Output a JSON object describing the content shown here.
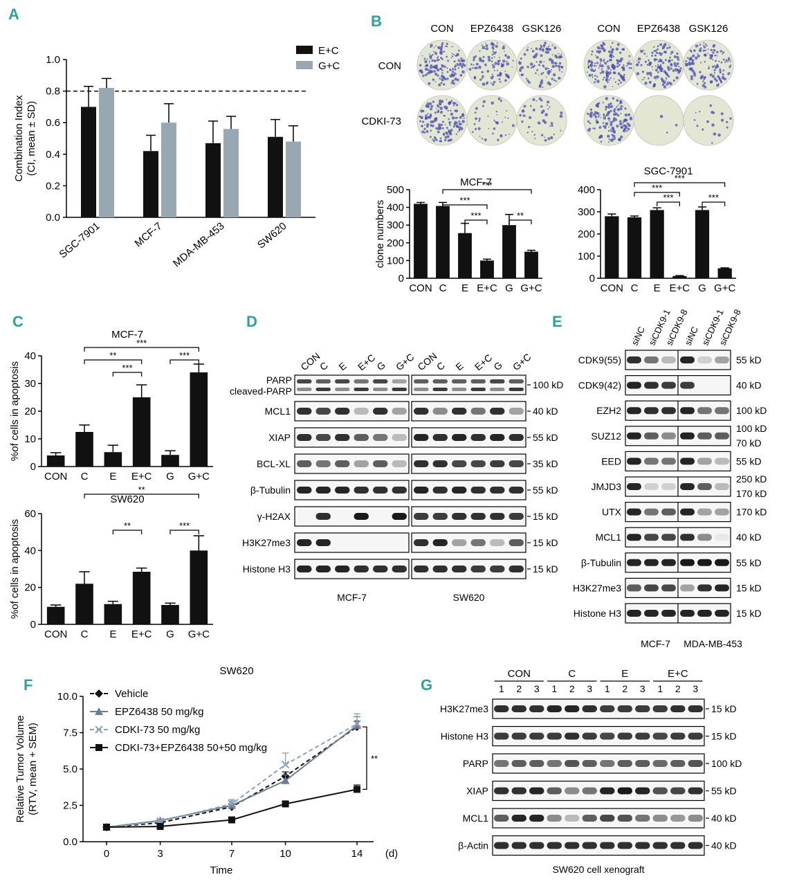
{
  "panels": {
    "A": "A",
    "B": "B",
    "C": "C",
    "D": "D",
    "E": "E",
    "F": "F",
    "G": "G"
  },
  "colors": {
    "accent": "#2aa39a",
    "black": "#111111",
    "grey_bar": "#98a8b3",
    "f_blue": "#6a7d92",
    "f_lightblue": "#8aa0b8"
  },
  "chart_data": [
    {
      "id": "A",
      "type": "bar",
      "title": "",
      "ylabel_line1": "Combination Index",
      "ylabel_line2": "(CI, mean ± SD)",
      "categories": [
        "SGC-7901",
        "MCF-7",
        "MDA-MB-453",
        "SW620"
      ],
      "series": [
        {
          "name": "E+C",
          "values": [
            0.7,
            0.42,
            0.47,
            0.51
          ],
          "errors": [
            0.13,
            0.1,
            0.14,
            0.11
          ]
        },
        {
          "name": "G+C",
          "values": [
            0.82,
            0.6,
            0.56,
            0.48
          ],
          "errors": [
            0.06,
            0.12,
            0.08,
            0.1
          ]
        }
      ],
      "reference_line": 0.8,
      "ylim": [
        0,
        1.0
      ],
      "yticks": [
        "0.0",
        "0.2",
        "0.4",
        "0.6",
        "0.8",
        "1.0"
      ]
    },
    {
      "id": "B1",
      "type": "bar",
      "title": "MCF-7",
      "ylabel": "clone numbers",
      "categories": [
        "CON",
        "C",
        "E",
        "E+C",
        "G",
        "G+C"
      ],
      "values": [
        420,
        408,
        255,
        100,
        300,
        150
      ],
      "errors": [
        8,
        20,
        55,
        8,
        60,
        8
      ],
      "ylim": [
        0,
        500
      ],
      "yticks": [
        "0",
        "100",
        "200",
        "300",
        "400",
        "500"
      ],
      "significance": [
        {
          "from": 1,
          "to": 3,
          "label": "***",
          "level": 1
        },
        {
          "from": 1,
          "to": 5,
          "label": "***",
          "level": 2
        },
        {
          "from": 2,
          "to": 3,
          "label": "***",
          "level": 0
        },
        {
          "from": 4,
          "to": 5,
          "label": "**",
          "level": 0
        }
      ]
    },
    {
      "id": "B2",
      "type": "bar",
      "title": "SGC-7901",
      "ylabel": "",
      "categories": [
        "CON",
        "C",
        "E",
        "E+C",
        "G",
        "G+C"
      ],
      "values": [
        280,
        275,
        308,
        10,
        308,
        45
      ],
      "errors": [
        10,
        6,
        10,
        2,
        14,
        2
      ],
      "ylim": [
        0,
        400
      ],
      "yticks": [
        "0",
        "100",
        "200",
        "300",
        "400"
      ],
      "significance": [
        {
          "from": 1,
          "to": 3,
          "label": "***",
          "level": 1
        },
        {
          "from": 1,
          "to": 5,
          "label": "***",
          "level": 2
        },
        {
          "from": 2,
          "to": 3,
          "label": "***",
          "level": 0
        },
        {
          "from": 4,
          "to": 5,
          "label": "***",
          "level": 0
        }
      ]
    },
    {
      "id": "C1",
      "type": "bar",
      "title": "MCF-7",
      "ylabel": "%of cells in apoptosis",
      "categories": [
        "CON",
        "C",
        "E",
        "E+C",
        "G",
        "G+C"
      ],
      "values": [
        4,
        12.5,
        5.2,
        25,
        4.2,
        34
      ],
      "errors": [
        1,
        2.5,
        2.5,
        4.5,
        1.5,
        3
      ],
      "ylim": [
        0,
        40
      ],
      "yticks": [
        "0",
        "10",
        "20",
        "30",
        "40"
      ],
      "significance": [
        {
          "from": 2,
          "to": 3,
          "label": "***",
          "level": 0
        },
        {
          "from": 1,
          "to": 3,
          "label": "**",
          "level": 1
        },
        {
          "from": 4,
          "to": 5,
          "label": "***",
          "level": 1
        },
        {
          "from": 1,
          "to": 5,
          "label": "***",
          "level": 2
        }
      ]
    },
    {
      "id": "C2",
      "type": "bar",
      "title": "SW620",
      "ylabel": "%of cells in apoptosis",
      "categories": [
        "CON",
        "C",
        "E",
        "E+C",
        "G",
        "G+C"
      ],
      "values": [
        9.5,
        22,
        11,
        28.5,
        10.5,
        40
      ],
      "errors": [
        1,
        6.5,
        1.5,
        2,
        1,
        8
      ],
      "ylim": [
        0,
        60
      ],
      "yticks": [
        "0",
        "20",
        "40",
        "60"
      ],
      "significance": [
        {
          "from": 2,
          "to": 3,
          "label": "**",
          "level": 0
        },
        {
          "from": 4,
          "to": 5,
          "label": "***",
          "level": 0
        },
        {
          "from": 1,
          "to": 5,
          "label": "**",
          "level": 2
        }
      ]
    },
    {
      "id": "F",
      "type": "line",
      "title": "SW620",
      "xlabel": "Time",
      "xunit": "(d)",
      "ylabel_line1": "Relative Tumor Volume",
      "ylabel_line2": "(RTV, mean + SEM)",
      "x": [
        0,
        3,
        7,
        10,
        14
      ],
      "xticks": [
        "0",
        "3",
        "7",
        "10",
        "14"
      ],
      "yticks": [
        "0.0",
        "2.5",
        "5.0",
        "7.5",
        "10.0"
      ],
      "ylim": [
        0,
        10
      ],
      "significance_label": "**",
      "series": [
        {
          "name": "Vehicle",
          "values": [
            1.0,
            1.3,
            2.4,
            4.5,
            7.9
          ],
          "errors": [
            0.05,
            0.1,
            0.2,
            0.3,
            0.4
          ],
          "marker": "diamond",
          "color": "#111111",
          "dash": "6,4"
        },
        {
          "name": "EPZ6438 50 mg/kg",
          "values": [
            1.0,
            1.45,
            2.5,
            4.2,
            8.0
          ],
          "errors": [
            0.05,
            0.1,
            0.3,
            0.4,
            0.6
          ],
          "marker": "triangle",
          "color": "#6a7d92",
          "dash": ""
        },
        {
          "name": "CDKI-73 50 mg/kg",
          "values": [
            1.0,
            1.4,
            2.6,
            5.3,
            8.1
          ],
          "errors": [
            0.05,
            0.1,
            0.3,
            0.8,
            0.7
          ],
          "marker": "x",
          "color": "#8aa0b8",
          "dash": "6,4"
        },
        {
          "name": "CDKI-73+EPZ6438 50+50 mg/kg",
          "values": [
            1.0,
            1.05,
            1.5,
            2.6,
            3.6
          ],
          "errors": [
            0.05,
            0.05,
            0.1,
            0.15,
            0.3
          ],
          "marker": "square",
          "color": "#111111",
          "dash": ""
        }
      ]
    }
  ],
  "panelB": {
    "cols": [
      "CON",
      "EPZ6438",
      "GSK126"
    ],
    "rows": [
      "CON",
      "CDKI-73"
    ]
  },
  "panelD": {
    "lanes": [
      "CON",
      "C",
      "E",
      "E+C",
      "G",
      "G+C",
      "CON",
      "C",
      "E",
      "E+C",
      "G",
      "G+C"
    ],
    "rows": [
      {
        "label": "PARP",
        "label2": "cleaved-PARP",
        "kd": "100 kD"
      },
      {
        "label": "MCL1",
        "kd": "40 kD"
      },
      {
        "label": "XIAP",
        "kd": "55 kD"
      },
      {
        "label": "BCL-XL",
        "kd": "35 kD"
      },
      {
        "label": "β-Tubulin",
        "kd": "55 kD"
      },
      {
        "label": "γ-H2AX",
        "kd": "15 kD"
      },
      {
        "label": "H3K27me3",
        "kd": "15 kD"
      },
      {
        "label": "Histone H3",
        "kd": "15 kD"
      }
    ],
    "groups": [
      "MCF-7",
      "SW620"
    ]
  },
  "panelE": {
    "lanes": [
      "siNC",
      "siCDK9-1",
      "siCDK9-8",
      "siNC",
      "siCDK9-1",
      "siCDK9-8"
    ],
    "rows": [
      {
        "label": "CDK9(55)",
        "kd": "55 kD"
      },
      {
        "label": "CDK9(42)",
        "kd": "40 kD"
      },
      {
        "label": "EZH2",
        "kd": "100 kD"
      },
      {
        "label": "SUZ12",
        "kd": "100 kD",
        "kd2": "70 kD"
      },
      {
        "label": "EED",
        "kd": "55 kD"
      },
      {
        "label": "JMJD3",
        "kd": "250 kD",
        "kd2": "170 kD"
      },
      {
        "label": "UTX",
        "kd": "170 kD"
      },
      {
        "label": "MCL1",
        "kd": "40 kD"
      },
      {
        "label": "β-Tubulin",
        "kd": "55 kD"
      },
      {
        "label": "H3K27me3",
        "kd": "15 kD"
      },
      {
        "label": "Histone H3",
        "kd": "15 kD"
      }
    ],
    "groups": [
      "MCF-7",
      "MDA-MB-453"
    ]
  },
  "panelG": {
    "groups": [
      "CON",
      "C",
      "E",
      "E+C"
    ],
    "lanes": [
      "1",
      "2",
      "3",
      "1",
      "2",
      "3",
      "1",
      "2",
      "3",
      "1",
      "2",
      "3"
    ],
    "rows": [
      {
        "label": "H3K27me3",
        "kd": "15 kD"
      },
      {
        "label": "Histone H3",
        "kd": "15 kD"
      },
      {
        "label": "PARP",
        "kd": "100 kD"
      },
      {
        "label": "XIAP",
        "kd": "55 kD"
      },
      {
        "label": "MCL1",
        "kd": "40 kD"
      },
      {
        "label": "β-Actin",
        "kd": "40 kD"
      }
    ],
    "caption": "SW620 cell xenograft"
  }
}
